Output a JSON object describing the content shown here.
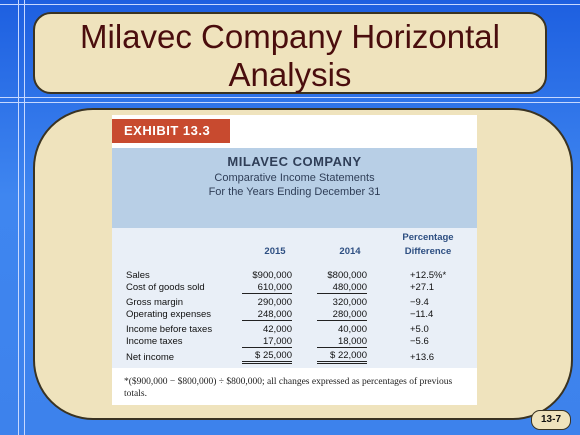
{
  "slide": {
    "title_line1": "Milavec Company Horizontal",
    "title_line2": "Analysis",
    "page_number": "13-7"
  },
  "exhibit": {
    "badge": "EXHIBIT 13.3",
    "company": "MILAVEC COMPANY",
    "statement": "Comparative Income Statements",
    "period": "For the Years Ending December 31",
    "col_2015": "2015",
    "col_2014": "2014",
    "col_pct_line1": "Percentage",
    "col_pct_line2": "Difference",
    "rows": [
      {
        "label": "Sales",
        "v2015": "$900,000",
        "v2014": "$800,000",
        "pct": "+12.5%*"
      },
      {
        "label": "Cost of goods sold",
        "v2015": "610,000",
        "v2014": "480,000",
        "pct": "+27.1"
      },
      {
        "label": "Gross margin",
        "v2015": "290,000",
        "v2014": "320,000",
        "pct": "−9.4"
      },
      {
        "label": "Operating expenses",
        "v2015": "248,000",
        "v2014": "280,000",
        "pct": "−11.4"
      },
      {
        "label": "Income before taxes",
        "v2015": "42,000",
        "v2014": "40,000",
        "pct": "+5.0"
      },
      {
        "label": "Income taxes",
        "v2015": "17,000",
        "v2014": "18,000",
        "pct": "−5.6"
      },
      {
        "label": "Net income",
        "v2015": "$ 25,000",
        "v2014": "$ 22,000",
        "pct": "+13.6"
      }
    ],
    "footnote": "*($900,000 − $800,000) ÷ $800,000; all changes expressed as percentages of previous totals."
  }
}
